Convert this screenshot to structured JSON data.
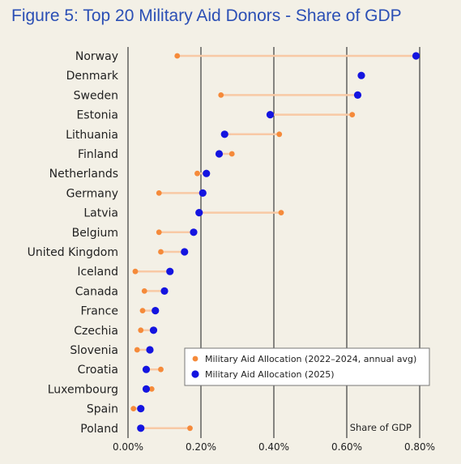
{
  "title": "Figure 5: Top 20 Military Aid Donors - Share of GDP",
  "colors": {
    "background": "#f3f0e6",
    "title": "#2b4fb5",
    "allocation_2022_2024": "#f58a3a",
    "allocation_2025": "#1414e0",
    "connector": "#f8c9a5",
    "gridline": "#4a4a4a"
  },
  "chart_data": {
    "type": "dot",
    "title": "Figure 5: Top 20 Military Aid Donors - Share of GDP",
    "xlabel": "Share of GDP",
    "ylabel": "",
    "xlim": [
      0,
      0.8
    ],
    "x_ticks": [
      0,
      0.2,
      0.4,
      0.6,
      0.8
    ],
    "x_tick_labels": [
      "0.00%",
      "0.20%",
      "0.40%",
      "0.60%",
      "0.80%"
    ],
    "grid": true,
    "legend_position": "lower-right",
    "categories": [
      "Norway",
      "Denmark",
      "Sweden",
      "Estonia",
      "Lithuania",
      "Finland",
      "Netherlands",
      "Germany",
      "Latvia",
      "Belgium",
      "United Kingdom",
      "Iceland",
      "Canada",
      "France",
      "Czechia",
      "Slovenia",
      "Croatia",
      "Luxembourg",
      "Spain",
      "Poland"
    ],
    "series": [
      {
        "name": "Military Aid Allocation (2022–2024, annual avg)",
        "color": "#f58a3a",
        "values": [
          0.135,
          null,
          0.255,
          0.615,
          0.415,
          0.285,
          0.19,
          0.085,
          0.42,
          0.085,
          0.09,
          0.02,
          0.045,
          0.04,
          0.035,
          0.025,
          0.09,
          0.065,
          0.015,
          0.17
        ]
      },
      {
        "name": "Military Aid Allocation (2025)",
        "color": "#1414e0",
        "values": [
          0.79,
          0.64,
          0.63,
          0.39,
          0.265,
          0.25,
          0.215,
          0.205,
          0.195,
          0.18,
          0.155,
          0.115,
          0.1,
          0.075,
          0.07,
          0.06,
          0.05,
          0.05,
          0.035,
          0.035
        ]
      }
    ]
  }
}
